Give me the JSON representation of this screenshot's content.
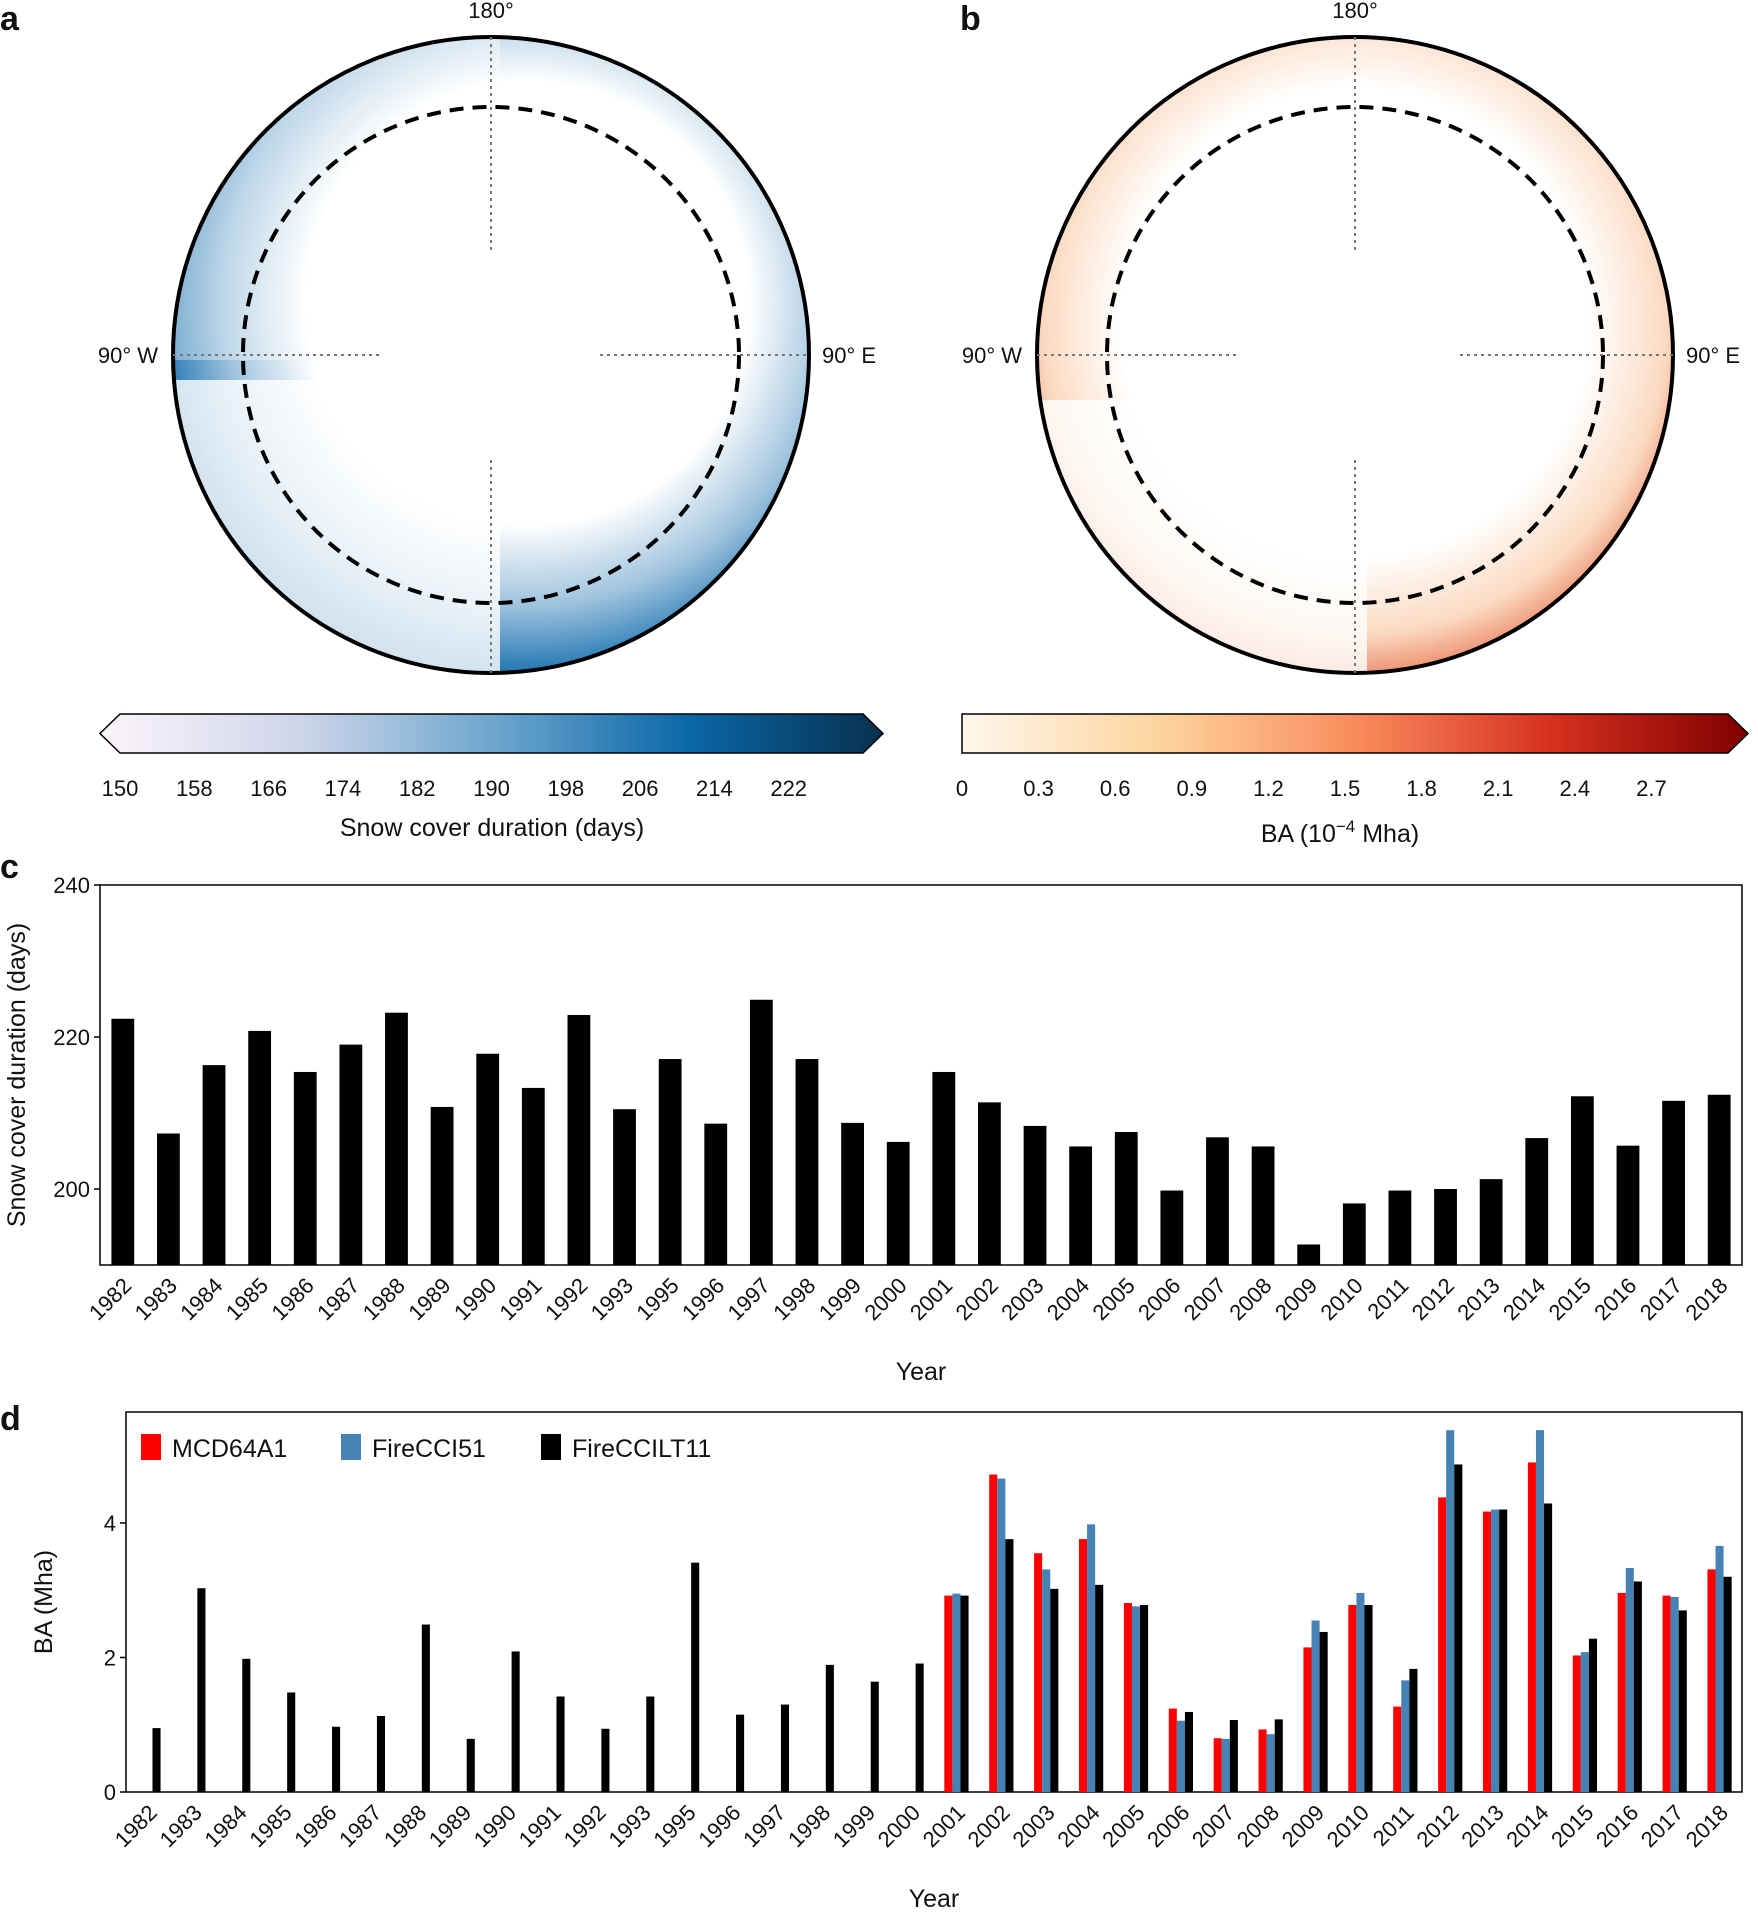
{
  "panels": {
    "a": {
      "letter": "a",
      "top_label": "180°",
      "left_label": "90° W",
      "right_label": "90° E",
      "colorbar": {
        "label": "Snow cover duration (days)",
        "ticks": [
          "150",
          "158",
          "166",
          "174",
          "182",
          "190",
          "198",
          "206",
          "214",
          "222"
        ],
        "min": 150,
        "max": 230,
        "colors": [
          "#fcf4fa",
          "#cfd6ea",
          "#6fa7cf",
          "#0b68a8",
          "#08304f"
        ],
        "extend": "both"
      }
    },
    "b": {
      "letter": "b",
      "top_label": "180°",
      "left_label": "90° W",
      "right_label": "90° E",
      "colorbar": {
        "label_main": "BA (10",
        "label_exp": "−4",
        "label_end": " Mha)",
        "ticks": [
          "0",
          "0.3",
          "0.6",
          "0.9",
          "1.2",
          "1.5",
          "1.8",
          "2.1",
          "2.4",
          "2.7"
        ],
        "min": 0,
        "max": 3.0,
        "colors": [
          "#fff7ec",
          "#fdd49e",
          "#f98c5d",
          "#d7301f",
          "#7f0000"
        ],
        "extend": "max"
      }
    },
    "c": {
      "letter": "c"
    },
    "d": {
      "letter": "d"
    }
  },
  "chart_data": [
    {
      "type": "bar",
      "panel": "c",
      "xlabel": "Year",
      "ylabel": "Snow cover duration (days)",
      "ylim": [
        190,
        240
      ],
      "yticks": [
        200,
        220,
        240
      ],
      "categories": [
        "1982",
        "1983",
        "1984",
        "1985",
        "1986",
        "1987",
        "1988",
        "1989",
        "1990",
        "1991",
        "1992",
        "1993",
        "1995",
        "1996",
        "1997",
        "1998",
        "1999",
        "2000",
        "2001",
        "2002",
        "2003",
        "2004",
        "2005",
        "2006",
        "2007",
        "2008",
        "2009",
        "2010",
        "2011",
        "2012",
        "2013",
        "2014",
        "2015",
        "2016",
        "2017",
        "2018"
      ],
      "values": [
        222.4,
        207.3,
        216.3,
        220.8,
        215.4,
        219.0,
        223.2,
        210.8,
        217.8,
        213.3,
        222.9,
        210.5,
        217.1,
        208.6,
        224.9,
        217.1,
        208.7,
        206.2,
        215.4,
        211.4,
        208.3,
        205.6,
        207.5,
        199.8,
        206.8,
        205.6,
        192.7,
        198.1,
        199.8,
        200.0,
        201.3,
        206.7,
        212.2,
        205.7,
        211.6,
        212.4
      ],
      "color": "#000000"
    },
    {
      "type": "bar",
      "panel": "d",
      "xlabel": "Year",
      "ylabel": "BA (Mha)",
      "ylim": [
        0,
        5.65
      ],
      "yticks": [
        0,
        2,
        4
      ],
      "legend": "top-left",
      "categories": [
        "1982",
        "1983",
        "1984",
        "1985",
        "1986",
        "1987",
        "1988",
        "1989",
        "1990",
        "1991",
        "1992",
        "1993",
        "1995",
        "1996",
        "1997",
        "1998",
        "1999",
        "2000",
        "2001",
        "2002",
        "2003",
        "2004",
        "2005",
        "2006",
        "2007",
        "2008",
        "2009",
        "2010",
        "2011",
        "2012",
        "2013",
        "2014",
        "2015",
        "2016",
        "2017",
        "2018"
      ],
      "series": [
        {
          "name": "MCD64A1",
          "color": "#ff0000",
          "values": [
            null,
            null,
            null,
            null,
            null,
            null,
            null,
            null,
            null,
            null,
            null,
            null,
            null,
            null,
            null,
            null,
            null,
            null,
            2.92,
            4.72,
            3.55,
            3.76,
            2.81,
            1.24,
            0.8,
            0.93,
            2.15,
            2.78,
            1.27,
            4.38,
            4.17,
            4.9,
            2.03,
            2.96,
            2.92,
            3.31
          ]
        },
        {
          "name": "FireCCI51",
          "color": "#4682b4",
          "values": [
            null,
            null,
            null,
            null,
            null,
            null,
            null,
            null,
            null,
            null,
            null,
            null,
            null,
            null,
            null,
            null,
            null,
            null,
            2.95,
            4.66,
            3.31,
            3.98,
            2.76,
            1.06,
            0.79,
            0.86,
            2.55,
            2.96,
            1.66,
            5.38,
            4.2,
            5.38,
            2.08,
            3.33,
            2.9,
            3.66
          ]
        },
        {
          "name": "FireCCILT11",
          "color": "#000000",
          "values": [
            0.95,
            3.03,
            1.98,
            1.48,
            0.97,
            1.13,
            2.49,
            0.79,
            2.09,
            1.42,
            0.94,
            1.42,
            3.41,
            1.15,
            1.3,
            1.89,
            1.64,
            1.91,
            2.92,
            3.76,
            3.02,
            3.08,
            2.78,
            1.19,
            1.07,
            1.08,
            2.38,
            2.78,
            1.83,
            4.87,
            4.2,
            4.29,
            2.28,
            3.13,
            2.7,
            3.2
          ]
        }
      ]
    }
  ]
}
